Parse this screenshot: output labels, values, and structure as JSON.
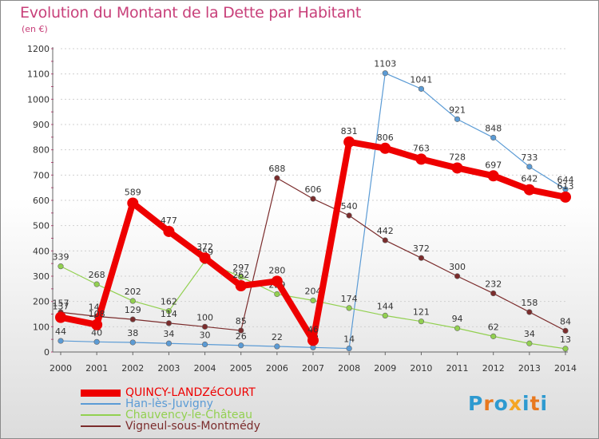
{
  "header": {
    "title": "Evolution du Montant de la Dette par Habitant",
    "unit": "(en €)"
  },
  "chart_data": {
    "type": "line",
    "title": "Evolution du Montant de la Dette par Habitant",
    "subtitle": "(en €)",
    "x": [
      "2000",
      "2001",
      "2002",
      "2003",
      "2004",
      "2005",
      "2006",
      "2007",
      "2008",
      "2009",
      "2010",
      "2011",
      "2012",
      "2013",
      "2014"
    ],
    "ylim": [
      0,
      1200
    ],
    "yticks": [
      0,
      100,
      200,
      300,
      400,
      500,
      600,
      700,
      800,
      900,
      1000,
      1100,
      1200
    ],
    "grid": "horizontal",
    "legend_position": "bottom-left",
    "series": [
      {
        "name": "QUINCY-LANDZéCOURT",
        "color": "#ee0000",
        "values": [
          137,
          108,
          589,
          477,
          372,
          262,
          280,
          46,
          831,
          806,
          763,
          728,
          697,
          642,
          613
        ]
      },
      {
        "name": "Han-lès-Juvigny",
        "color": "#5b9bd5",
        "values": [
          44,
          40,
          38,
          34,
          30,
          26,
          22,
          18,
          14,
          1103,
          1041,
          921,
          848,
          733,
          644
        ]
      },
      {
        "name": "Chauvency-le-Château",
        "color": "#92d050",
        "values": [
          339,
          268,
          202,
          162,
          359,
          297,
          229,
          204,
          174,
          144,
          121,
          94,
          62,
          34,
          13
        ]
      },
      {
        "name": "Vigneul-sous-Montmédy",
        "color": "#7b2c2c",
        "values": [
          157,
          141,
          129,
          114,
          100,
          85,
          688,
          606,
          540,
          442,
          372,
          300,
          232,
          158,
          84
        ]
      }
    ]
  },
  "logo": {
    "letters": [
      "P",
      "r",
      "o",
      "x",
      "i",
      "t",
      "i"
    ],
    "colors": [
      "#2e9ad0",
      "#e8781e",
      "#2e9ad0",
      "#f5a623",
      "#2e9ad0",
      "#e8781e",
      "#2e9ad0"
    ]
  }
}
